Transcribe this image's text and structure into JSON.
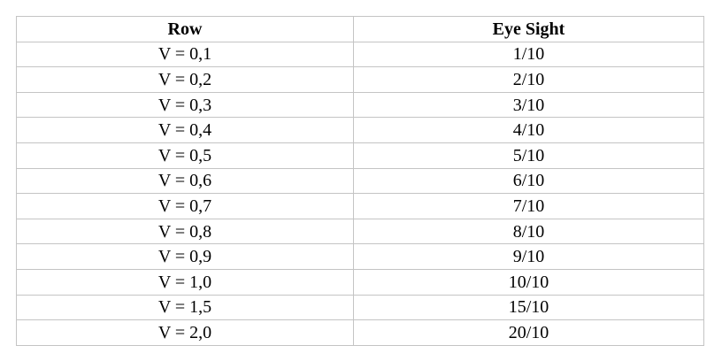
{
  "table": {
    "headers": [
      "Row",
      "Eye Sight"
    ],
    "rows": [
      [
        "V = 0,1",
        "1/10"
      ],
      [
        "V = 0,2",
        "2/10"
      ],
      [
        "V = 0,3",
        "3/10"
      ],
      [
        "V = 0,4",
        "4/10"
      ],
      [
        "V = 0,5",
        "5/10"
      ],
      [
        "V = 0,6",
        "6/10"
      ],
      [
        "V = 0,7",
        "7/10"
      ],
      [
        "V = 0,8",
        "8/10"
      ],
      [
        "V = 0,9",
        "9/10"
      ],
      [
        "V = 1,0",
        "10/10"
      ],
      [
        "V = 1,5",
        "15/10"
      ],
      [
        "V = 2,0",
        "20/10"
      ]
    ]
  }
}
